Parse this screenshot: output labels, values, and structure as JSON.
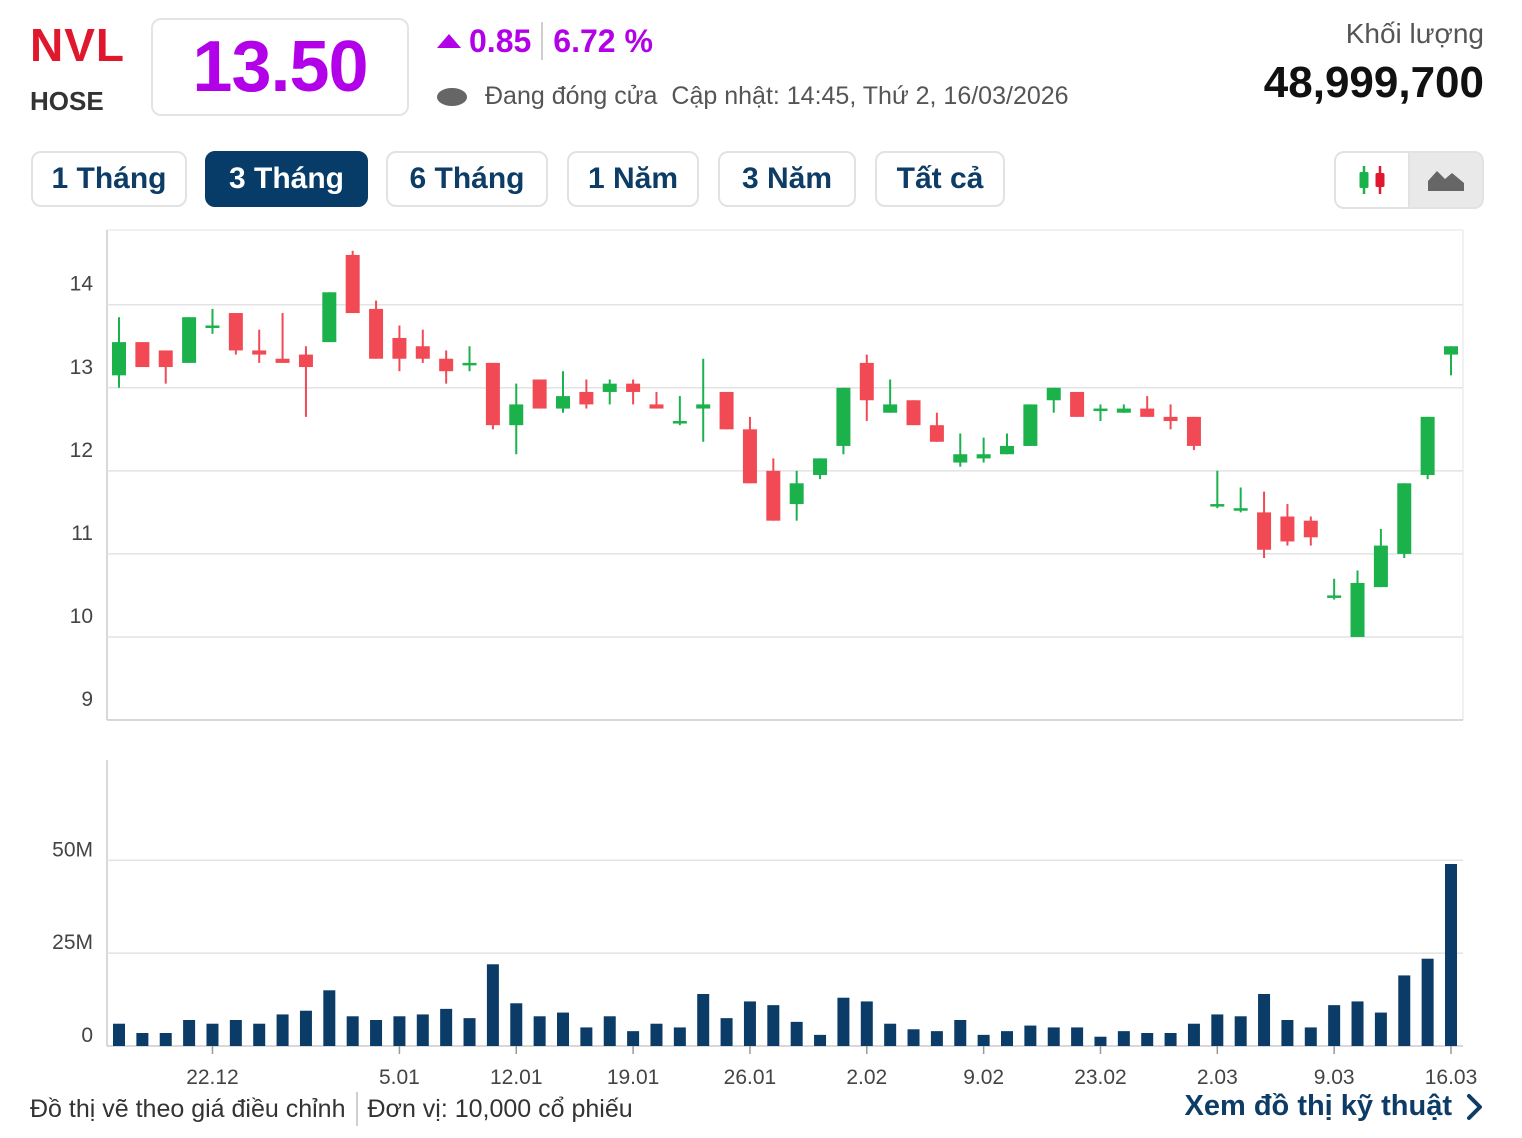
{
  "header": {
    "ticker": "NVL",
    "exchange": "HOSE",
    "price": "13.50",
    "change": "0.85",
    "change_pct": "6.72 %",
    "status": "Đang đóng cửa",
    "updated": "Cập nhật: 14:45, Thứ 2, 16/03/2026",
    "volume_label": "Khối lượng",
    "volume_value": "48,999,700"
  },
  "tabs": [
    {
      "label": "1 Tháng",
      "active": false
    },
    {
      "label": "3 Tháng",
      "active": true
    },
    {
      "label": "6 Tháng",
      "active": false
    },
    {
      "label": "1 Năm",
      "active": false
    },
    {
      "label": "3 Năm",
      "active": false
    },
    {
      "label": "Tất cả",
      "active": false
    }
  ],
  "chart_type_toggle": {
    "options": [
      "candlestick-icon",
      "area-chart-icon"
    ],
    "selected": "area-chart-icon"
  },
  "colors": {
    "up": "#1bb14b",
    "down": "#f14a55",
    "volume": "#0b3c67",
    "grid": "#e3e3e3",
    "price": "#b200e8",
    "ticker": "#e0182d"
  },
  "chart_data": {
    "type": "candlestick",
    "price_axis": {
      "ticks": [
        9,
        10,
        11,
        12,
        13,
        14
      ],
      "range": [
        9,
        14.9
      ]
    },
    "volume_axis": {
      "ticks": [
        "0",
        "25M",
        "50M"
      ],
      "tick_values": [
        0,
        25,
        50
      ],
      "range": [
        0,
        77
      ],
      "unit": "M"
    },
    "x_labels": [
      {
        "label": "22.12",
        "index": 4
      },
      {
        "label": "5.01",
        "index": 12
      },
      {
        "label": "12.01",
        "index": 17
      },
      {
        "label": "19.01",
        "index": 22
      },
      {
        "label": "26.01",
        "index": 27
      },
      {
        "label": "2.02",
        "index": 32
      },
      {
        "label": "9.02",
        "index": 37
      },
      {
        "label": "23.02",
        "index": 42
      },
      {
        "label": "2.03",
        "index": 47
      },
      {
        "label": "9.03",
        "index": 52
      },
      {
        "label": "16.03",
        "index": 57
      }
    ],
    "candles": [
      {
        "o": 13.15,
        "c": 13.55,
        "h": 13.85,
        "l": 13.0,
        "v": 6
      },
      {
        "o": 13.55,
        "c": 13.25,
        "h": 13.55,
        "l": 13.25,
        "v": 3.5
      },
      {
        "o": 13.45,
        "c": 13.25,
        "h": 13.45,
        "l": 13.05,
        "v": 3.5
      },
      {
        "o": 13.3,
        "c": 13.85,
        "h": 13.85,
        "l": 13.3,
        "v": 7
      },
      {
        "o": 13.75,
        "c": 13.75,
        "h": 13.95,
        "l": 13.65,
        "v": 6
      },
      {
        "o": 13.9,
        "c": 13.45,
        "h": 13.9,
        "l": 13.4,
        "v": 7
      },
      {
        "o": 13.45,
        "c": 13.4,
        "h": 13.7,
        "l": 13.3,
        "v": 6
      },
      {
        "o": 13.35,
        "c": 13.3,
        "h": 13.9,
        "l": 13.3,
        "v": 8.5
      },
      {
        "o": 13.4,
        "c": 13.25,
        "h": 13.5,
        "l": 12.65,
        "v": 9.5
      },
      {
        "o": 13.55,
        "c": 14.15,
        "h": 14.15,
        "l": 13.55,
        "v": 15
      },
      {
        "o": 14.6,
        "c": 13.9,
        "h": 14.65,
        "l": 13.9,
        "v": 8
      },
      {
        "o": 13.95,
        "c": 13.35,
        "h": 14.05,
        "l": 13.35,
        "v": 7
      },
      {
        "o": 13.6,
        "c": 13.35,
        "h": 13.75,
        "l": 13.2,
        "v": 8
      },
      {
        "o": 13.5,
        "c": 13.35,
        "h": 13.7,
        "l": 13.3,
        "v": 8.5
      },
      {
        "o": 13.35,
        "c": 13.2,
        "h": 13.45,
        "l": 13.05,
        "v": 10
      },
      {
        "o": 13.3,
        "c": 13.3,
        "h": 13.5,
        "l": 13.2,
        "v": 7.5
      },
      {
        "o": 13.3,
        "c": 12.55,
        "h": 13.3,
        "l": 12.5,
        "v": 22
      },
      {
        "o": 12.55,
        "c": 12.8,
        "h": 13.05,
        "l": 12.2,
        "v": 11.5
      },
      {
        "o": 13.1,
        "c": 12.75,
        "h": 13.1,
        "l": 12.75,
        "v": 8
      },
      {
        "o": 12.75,
        "c": 12.9,
        "h": 13.2,
        "l": 12.7,
        "v": 9
      },
      {
        "o": 12.95,
        "c": 12.8,
        "h": 13.1,
        "l": 12.75,
        "v": 5
      },
      {
        "o": 12.95,
        "c": 13.05,
        "h": 13.1,
        "l": 12.8,
        "v": 8
      },
      {
        "o": 13.05,
        "c": 12.95,
        "h": 13.1,
        "l": 12.8,
        "v": 4
      },
      {
        "o": 12.8,
        "c": 12.75,
        "h": 12.95,
        "l": 12.75,
        "v": 6
      },
      {
        "o": 12.6,
        "c": 12.6,
        "h": 12.9,
        "l": 12.55,
        "v": 5
      },
      {
        "o": 12.75,
        "c": 12.8,
        "h": 13.35,
        "l": 12.35,
        "v": 14
      },
      {
        "o": 12.95,
        "c": 12.5,
        "h": 12.95,
        "l": 12.5,
        "v": 7.5
      },
      {
        "o": 12.5,
        "c": 11.85,
        "h": 12.65,
        "l": 11.85,
        "v": 12
      },
      {
        "o": 12.0,
        "c": 11.4,
        "h": 12.15,
        "l": 11.4,
        "v": 11
      },
      {
        "o": 11.6,
        "c": 11.85,
        "h": 12.0,
        "l": 11.4,
        "v": 6.5
      },
      {
        "o": 11.95,
        "c": 12.15,
        "h": 12.15,
        "l": 11.9,
        "v": 3
      },
      {
        "o": 12.3,
        "c": 13.0,
        "h": 13.0,
        "l": 12.2,
        "v": 13
      },
      {
        "o": 13.3,
        "c": 12.85,
        "h": 13.4,
        "l": 12.6,
        "v": 12
      },
      {
        "o": 12.7,
        "c": 12.8,
        "h": 13.1,
        "l": 12.7,
        "v": 6
      },
      {
        "o": 12.85,
        "c": 12.55,
        "h": 12.85,
        "l": 12.55,
        "v": 4.5
      },
      {
        "o": 12.55,
        "c": 12.35,
        "h": 12.7,
        "l": 12.35,
        "v": 4
      },
      {
        "o": 12.1,
        "c": 12.2,
        "h": 12.45,
        "l": 12.05,
        "v": 7
      },
      {
        "o": 12.15,
        "c": 12.2,
        "h": 12.4,
        "l": 12.1,
        "v": 3
      },
      {
        "o": 12.2,
        "c": 12.3,
        "h": 12.45,
        "l": 12.2,
        "v": 4
      },
      {
        "o": 12.3,
        "c": 12.8,
        "h": 12.8,
        "l": 12.3,
        "v": 5.5
      },
      {
        "o": 12.85,
        "c": 13.0,
        "h": 13.0,
        "l": 12.7,
        "v": 5
      },
      {
        "o": 12.95,
        "c": 12.65,
        "h": 12.95,
        "l": 12.65,
        "v": 5
      },
      {
        "o": 12.75,
        "c": 12.75,
        "h": 12.8,
        "l": 12.6,
        "v": 2.5
      },
      {
        "o": 12.7,
        "c": 12.75,
        "h": 12.8,
        "l": 12.7,
        "v": 4
      },
      {
        "o": 12.75,
        "c": 12.65,
        "h": 12.9,
        "l": 12.65,
        "v": 3.5
      },
      {
        "o": 12.65,
        "c": 12.6,
        "h": 12.8,
        "l": 12.5,
        "v": 3.5
      },
      {
        "o": 12.65,
        "c": 12.3,
        "h": 12.65,
        "l": 12.25,
        "v": 6
      },
      {
        "o": 11.6,
        "c": 11.6,
        "h": 12.0,
        "l": 11.55,
        "v": 8.5
      },
      {
        "o": 11.55,
        "c": 11.55,
        "h": 11.8,
        "l": 11.5,
        "v": 8
      },
      {
        "o": 11.5,
        "c": 11.05,
        "h": 11.75,
        "l": 10.95,
        "v": 14
      },
      {
        "o": 11.45,
        "c": 11.15,
        "h": 11.6,
        "l": 11.1,
        "v": 7
      },
      {
        "o": 11.4,
        "c": 11.2,
        "h": 11.45,
        "l": 11.1,
        "v": 5
      },
      {
        "o": 10.5,
        "c": 10.5,
        "h": 10.7,
        "l": 10.45,
        "v": 11
      },
      {
        "o": 10.0,
        "c": 10.65,
        "h": 10.8,
        "l": 10.0,
        "v": 12
      },
      {
        "o": 10.6,
        "c": 11.1,
        "h": 11.3,
        "l": 10.6,
        "v": 9
      },
      {
        "o": 11.0,
        "c": 11.85,
        "h": 11.85,
        "l": 10.95,
        "v": 19
      },
      {
        "o": 11.95,
        "c": 12.65,
        "h": 12.65,
        "l": 11.9,
        "v": 23.5
      },
      {
        "o": 13.4,
        "c": 13.5,
        "h": 13.5,
        "l": 13.15,
        "v": 49
      }
    ]
  },
  "footer": {
    "note": "Đồ thị vẽ theo giá điều chỉnh",
    "unit": "Đơn vị: 10,000 cổ phiếu",
    "link": "Xem đồ thị kỹ thuật"
  }
}
